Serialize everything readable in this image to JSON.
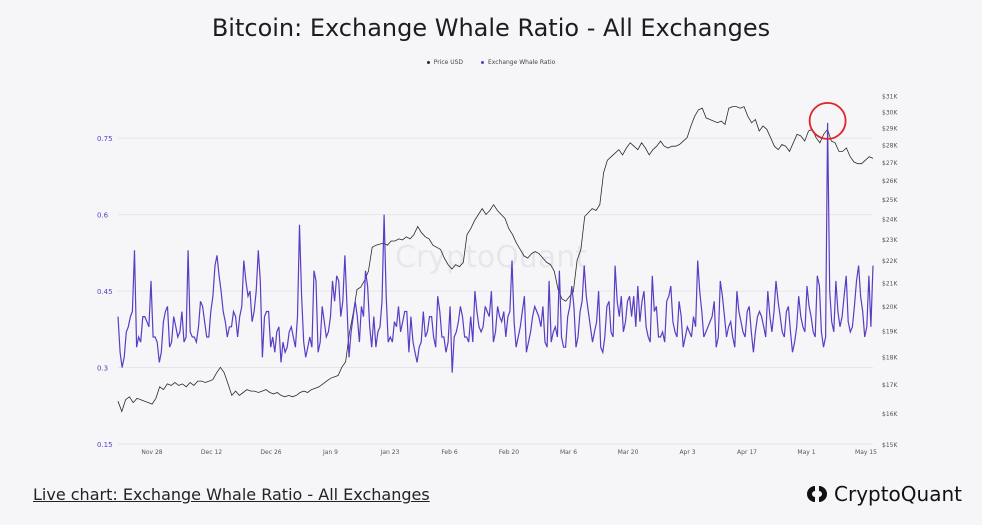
{
  "title": "Bitcoin: Exchange Whale Ratio - All Exchanges",
  "footer": {
    "link_label": "Live chart: Exchange Whale Ratio - All Exchanges",
    "brand": "CryptoQuant"
  },
  "watermark": "CryptoQuant",
  "colors": {
    "price": "#2b2b2b",
    "ratio": "#5b3cc4",
    "highlight": "#e0242a",
    "grid": "#e6e6ea"
  },
  "chart_data": {
    "type": "line",
    "legend_position": "top-center",
    "x_ticks": [
      "Nov 28",
      "Dec 12",
      "Dec 26",
      "Jan 9",
      "Jan 23",
      "Feb 6",
      "Feb 20",
      "Mar 6",
      "Mar 20",
      "Apr 3",
      "Apr 17",
      "May 1",
      "May 15"
    ],
    "left_axis": {
      "ticks": [
        "0.15",
        "0.3",
        "0.45",
        "0.6",
        "0.75"
      ],
      "range": [
        0.15,
        0.87
      ]
    },
    "right_axis": {
      "ticks": [
        "$15K",
        "$16K",
        "$17K",
        "$18K",
        "$19K",
        "$20K",
        "$21K",
        "$22K",
        "$23K",
        "$24K",
        "$25K",
        "$26K",
        "$27K",
        "$28K",
        "$29K",
        "$30K",
        "$31K"
      ]
    },
    "series": [
      {
        "name": "Price USD",
        "axis": "right",
        "values": [
          16400,
          16050,
          16450,
          16550,
          16350,
          16500,
          16450,
          16400,
          16350,
          16300,
          16500,
          16900,
          16800,
          17000,
          16950,
          17050,
          16950,
          17000,
          16900,
          17050,
          16950,
          17100,
          17100,
          17050,
          17100,
          17150,
          17400,
          17600,
          17400,
          17000,
          16600,
          16750,
          16600,
          16700,
          16800,
          16750,
          16750,
          16700,
          16750,
          16800,
          16700,
          16650,
          16700,
          16600,
          16550,
          16600,
          16550,
          16600,
          16700,
          16750,
          16700,
          16800,
          16850,
          16900,
          17000,
          17100,
          17200,
          17250,
          17300,
          17600,
          17800,
          18900,
          19700,
          20700,
          20800,
          21100,
          21500,
          22600,
          22700,
          22750,
          22800,
          22700,
          22900,
          22900,
          23000,
          22950,
          23100,
          23000,
          23200,
          23600,
          23300,
          23100,
          23000,
          22700,
          22600,
          22500,
          22100,
          21800,
          21600,
          21800,
          21700,
          21900,
          23200,
          23500,
          23900,
          24200,
          24500,
          24200,
          24400,
          24700,
          24400,
          24200,
          24000,
          23500,
          23200,
          22800,
          22500,
          22200,
          22100,
          22300,
          22400,
          22300,
          22100,
          21900,
          21800,
          21500,
          20700,
          20300,
          20200,
          20400,
          20600,
          22000,
          22500,
          24100,
          24300,
          24500,
          24400,
          24700,
          26400,
          27100,
          27300,
          27500,
          27700,
          27400,
          27800,
          28100,
          27900,
          27700,
          28100,
          27800,
          27400,
          27700,
          27900,
          28200,
          27900,
          27800,
          27900,
          27900,
          28000,
          28200,
          28400,
          29100,
          29700,
          30100,
          30200,
          29600,
          29500,
          29400,
          29300,
          29400,
          29200,
          30200,
          30300,
          30300,
          30200,
          30300,
          29700,
          29300,
          29500,
          28800,
          29100,
          28900,
          28400,
          27900,
          27700,
          28000,
          27900,
          27600,
          28100,
          28600,
          28500,
          28200,
          28800,
          28900,
          28400,
          28100,
          28600,
          28900,
          28200,
          28100,
          27600,
          27600,
          27800,
          27300,
          27000,
          26900,
          26900,
          27100,
          27300,
          27200
        ],
        "unit": "USD"
      },
      {
        "name": "Exchange Whale Ratio",
        "axis": "left",
        "values": [
          0.4,
          0.33,
          0.3,
          0.32,
          0.37,
          0.38,
          0.4,
          0.41,
          0.53,
          0.34,
          0.36,
          0.35,
          0.4,
          0.4,
          0.39,
          0.38,
          0.47,
          0.36,
          0.36,
          0.35,
          0.31,
          0.33,
          0.39,
          0.41,
          0.42,
          0.34,
          0.35,
          0.4,
          0.38,
          0.36,
          0.37,
          0.41,
          0.35,
          0.36,
          0.53,
          0.37,
          0.36,
          0.36,
          0.35,
          0.38,
          0.43,
          0.42,
          0.39,
          0.36,
          0.36,
          0.41,
          0.44,
          0.5,
          0.52,
          0.48,
          0.45,
          0.41,
          0.39,
          0.36,
          0.38,
          0.38,
          0.41,
          0.4,
          0.36,
          0.4,
          0.42,
          0.51,
          0.47,
          0.44,
          0.45,
          0.39,
          0.41,
          0.45,
          0.53,
          0.47,
          0.32,
          0.4,
          0.41,
          0.41,
          0.34,
          0.36,
          0.33,
          0.37,
          0.38,
          0.31,
          0.35,
          0.33,
          0.34,
          0.37,
          0.38,
          0.36,
          0.34,
          0.4,
          0.58,
          0.44,
          0.35,
          0.32,
          0.34,
          0.36,
          0.34,
          0.49,
          0.47,
          0.33,
          0.35,
          0.42,
          0.39,
          0.36,
          0.37,
          0.4,
          0.47,
          0.43,
          0.48,
          0.47,
          0.4,
          0.43,
          0.52,
          0.42,
          0.32,
          0.37,
          0.4,
          0.43,
          0.4,
          0.35,
          0.42,
          0.4,
          0.49,
          0.46,
          0.38,
          0.34,
          0.4,
          0.34,
          0.37,
          0.38,
          0.43,
          0.6,
          0.44,
          0.35,
          0.36,
          0.35,
          0.39,
          0.38,
          0.42,
          0.37,
          0.39,
          0.41,
          0.41,
          0.33,
          0.4,
          0.35,
          0.33,
          0.31,
          0.34,
          0.35,
          0.41,
          0.36,
          0.37,
          0.4,
          0.4,
          0.36,
          0.34,
          0.44,
          0.41,
          0.36,
          0.36,
          0.33,
          0.35,
          0.42,
          0.29,
          0.36,
          0.37,
          0.39,
          0.42,
          0.4,
          0.36,
          0.36,
          0.35,
          0.4,
          0.35,
          0.45,
          0.41,
          0.38,
          0.37,
          0.38,
          0.42,
          0.41,
          0.4,
          0.45,
          0.35,
          0.37,
          0.42,
          0.4,
          0.39,
          0.41,
          0.36,
          0.4,
          0.41,
          0.51,
          0.39,
          0.34,
          0.36,
          0.38,
          0.41,
          0.44,
          0.33,
          0.35,
          0.37,
          0.4,
          0.42,
          0.41,
          0.4,
          0.38,
          0.42,
          0.35,
          0.34,
          0.47,
          0.35,
          0.37,
          0.38,
          0.36,
          0.49,
          0.36,
          0.34,
          0.34,
          0.4,
          0.42,
          0.46,
          0.42,
          0.34,
          0.36,
          0.41,
          0.43,
          0.5,
          0.44,
          0.41,
          0.38,
          0.35,
          0.37,
          0.39,
          0.45,
          0.34,
          0.33,
          0.36,
          0.42,
          0.43,
          0.37,
          0.36,
          0.5,
          0.43,
          0.4,
          0.44,
          0.37,
          0.39,
          0.43,
          0.44,
          0.4,
          0.44,
          0.38,
          0.46,
          0.39,
          0.43,
          0.45,
          0.38,
          0.36,
          0.35,
          0.48,
          0.41,
          0.42,
          0.36,
          0.36,
          0.37,
          0.35,
          0.43,
          0.44,
          0.46,
          0.39,
          0.37,
          0.36,
          0.43,
          0.4,
          0.34,
          0.36,
          0.38,
          0.37,
          0.36,
          0.4,
          0.38,
          0.51,
          0.45,
          0.41,
          0.36,
          0.37,
          0.38,
          0.39,
          0.4,
          0.43,
          0.34,
          0.36,
          0.47,
          0.44,
          0.4,
          0.36,
          0.38,
          0.39,
          0.36,
          0.34,
          0.45,
          0.41,
          0.39,
          0.37,
          0.36,
          0.41,
          0.42,
          0.37,
          0.33,
          0.37,
          0.4,
          0.41,
          0.4,
          0.38,
          0.36,
          0.45,
          0.4,
          0.37,
          0.41,
          0.47,
          0.43,
          0.4,
          0.37,
          0.36,
          0.41,
          0.42,
          0.37,
          0.33,
          0.35,
          0.38,
          0.44,
          0.4,
          0.38,
          0.37,
          0.46,
          0.42,
          0.4,
          0.37,
          0.36,
          0.48,
          0.46,
          0.37,
          0.34,
          0.36,
          0.78,
          0.45,
          0.39,
          0.37,
          0.47,
          0.41,
          0.38,
          0.4,
          0.44,
          0.48,
          0.39,
          0.37,
          0.38,
          0.42,
          0.47,
          0.5,
          0.44,
          0.41,
          0.36,
          0.38,
          0.48,
          0.38,
          0.5
        ]
      }
    ],
    "annotation": {
      "type": "circle",
      "target": "peak ratio near May 8"
    }
  }
}
